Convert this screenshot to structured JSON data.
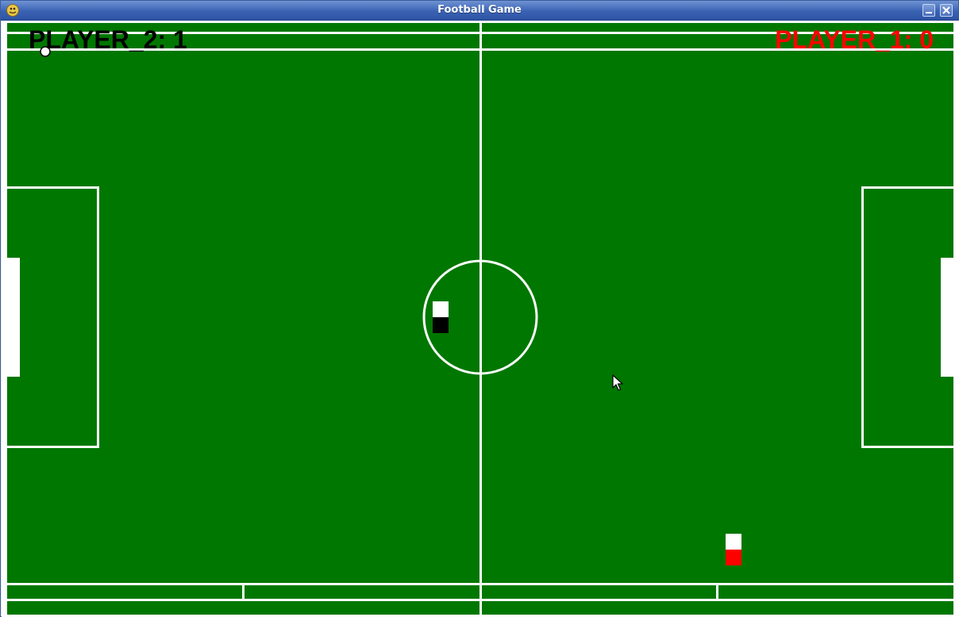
{
  "window": {
    "title": "Football Game",
    "app_icon": "python-snake-icon",
    "minimize_icon": "minimize-icon",
    "close_icon": "close-icon"
  },
  "scoreboard": {
    "player2": "PLAYER_2: 1",
    "player1": "PLAYER_1: 0"
  },
  "colors": {
    "pitch": "#007700",
    "lines": "#ffffff",
    "player1": "#ff0000",
    "player2": "#000000",
    "ball": "#ffffff"
  },
  "entities": {
    "player2_icon": "black-player-token",
    "player1_icon": "red-player-token",
    "ball_icon": "ball-icon",
    "cursor_icon": "mouse-pointer-icon"
  }
}
